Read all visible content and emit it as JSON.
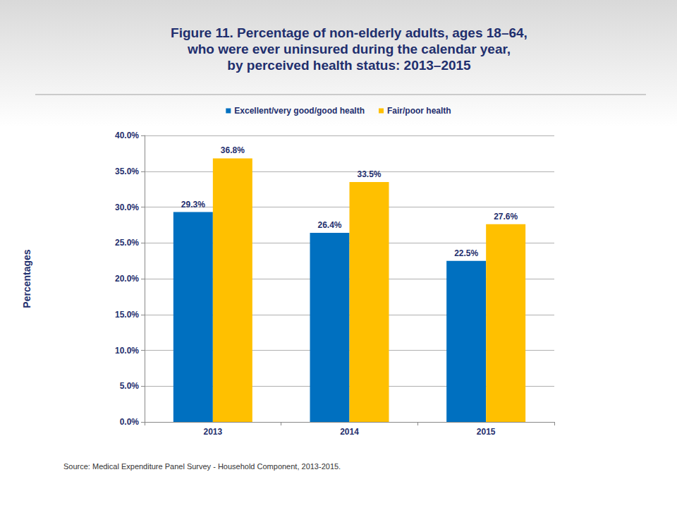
{
  "chart_data": {
    "type": "bar",
    "title": "Figure 11. Percentage of non-elderly adults, ages 18–64,\nwho were ever uninsured during the calendar year,\nby perceived health status: 2013–2015",
    "y_label": "Percentages",
    "source": "Source: Medical Expenditure Panel Survey - Household Component, 2013-2015.",
    "categories": [
      "2013",
      "2014",
      "2015"
    ],
    "series": [
      {
        "name": "Excellent/very good/good health",
        "color": "#0070c0",
        "values": [
          29.3,
          26.4,
          22.5
        ],
        "value_labels": [
          "29.3%",
          "26.4%",
          "22.5%"
        ]
      },
      {
        "name": "Fair/poor health",
        "color": "#ffc000",
        "values": [
          36.8,
          33.5,
          27.6
        ],
        "value_labels": [
          "36.8%",
          "33.5%",
          "27.6%"
        ]
      }
    ],
    "ylim": [
      0,
      40
    ],
    "yticks": [
      {
        "value": 0,
        "label": "0.0%"
      },
      {
        "value": 5,
        "label": "5.0%"
      },
      {
        "value": 10,
        "label": "10.0%"
      },
      {
        "value": 15,
        "label": "15.0%"
      },
      {
        "value": 20,
        "label": "20.0%"
      },
      {
        "value": 25,
        "label": "25.0%"
      },
      {
        "value": 30,
        "label": "30.0%"
      },
      {
        "value": 35,
        "label": "35.0%"
      },
      {
        "value": 40,
        "label": "40.0%"
      }
    ],
    "grid": true,
    "legend": "top",
    "data_labels": true
  }
}
